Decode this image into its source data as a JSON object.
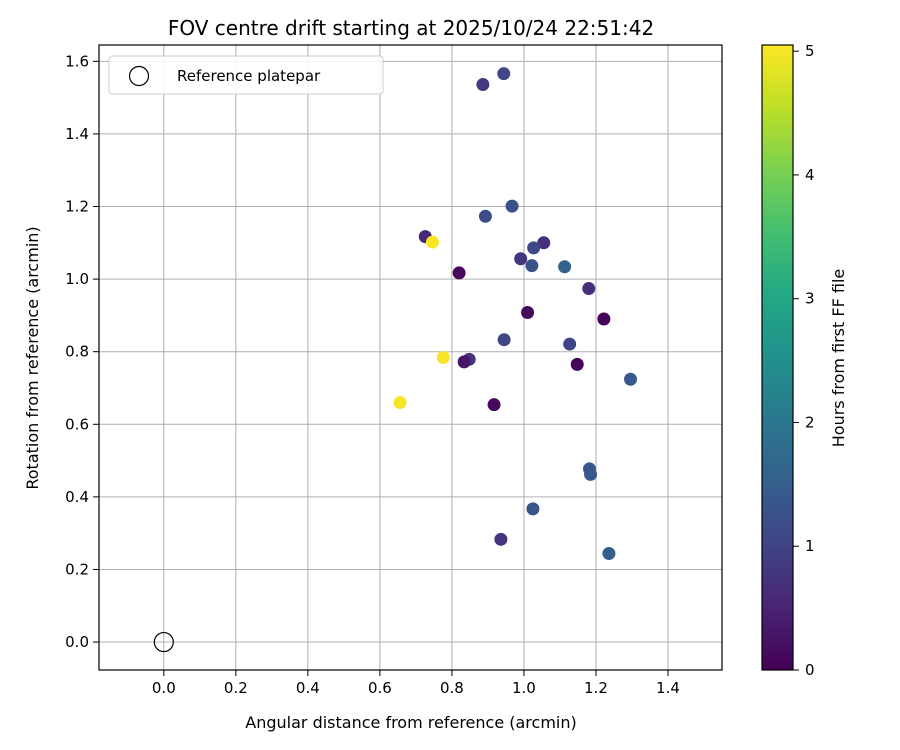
{
  "chart_data": {
    "type": "scatter",
    "title": "FOV centre drift starting at 2025/10/24 22:51:42",
    "xlabel": "Angular distance from reference (arcmin)",
    "ylabel": "Rotation from reference (arcmin)",
    "xlim": [
      -0.18,
      1.55
    ],
    "ylim": [
      -0.077,
      1.645
    ],
    "xticks": [
      0.0,
      0.2,
      0.4,
      0.6,
      0.8,
      1.0,
      1.2,
      1.4
    ],
    "xtick_labels": [
      "0.0",
      "0.2",
      "0.4",
      "0.6",
      "0.8",
      "1.0",
      "1.2",
      "1.4"
    ],
    "yticks": [
      0.0,
      0.2,
      0.4,
      0.6,
      0.8,
      1.0,
      1.2,
      1.4,
      1.6
    ],
    "ytick_labels": [
      "0.0",
      "0.2",
      "0.4",
      "0.6",
      "0.8",
      "1.0",
      "1.2",
      "1.4",
      "1.6"
    ],
    "grid": true,
    "legend": {
      "location": "upper-left",
      "entries": [
        "Reference platepar"
      ]
    },
    "reference_point": {
      "x": 0.0,
      "y": 0.0,
      "label": "Reference platepar"
    },
    "colorbar": {
      "label": "Hours from first FF file",
      "colormap": "viridis",
      "range": [
        0,
        5.05
      ],
      "ticks": [
        0,
        1,
        2,
        3,
        4,
        5
      ],
      "tick_labels": [
        "0",
        "1",
        "2",
        "3",
        "4",
        "5"
      ]
    },
    "points": [
      {
        "x": 0.944,
        "y": 1.566,
        "hours": 1.05
      },
      {
        "x": 0.886,
        "y": 1.536,
        "hours": 0.85
      },
      {
        "x": 0.967,
        "y": 1.201,
        "hours": 1.25
      },
      {
        "x": 0.893,
        "y": 1.173,
        "hours": 1.15
      },
      {
        "x": 0.726,
        "y": 1.117,
        "hours": 0.55
      },
      {
        "x": 0.746,
        "y": 1.102,
        "hours": 5.0
      },
      {
        "x": 1.055,
        "y": 1.1,
        "hours": 0.7
      },
      {
        "x": 1.027,
        "y": 1.086,
        "hours": 1.1
      },
      {
        "x": 0.991,
        "y": 1.056,
        "hours": 0.75
      },
      {
        "x": 1.022,
        "y": 1.037,
        "hours": 1.25
      },
      {
        "x": 1.113,
        "y": 1.034,
        "hours": 1.55
      },
      {
        "x": 0.82,
        "y": 1.017,
        "hours": 0.1
      },
      {
        "x": 1.18,
        "y": 0.974,
        "hours": 0.7
      },
      {
        "x": 1.01,
        "y": 0.908,
        "hours": 0.1
      },
      {
        "x": 1.222,
        "y": 0.89,
        "hours": 0.05
      },
      {
        "x": 0.945,
        "y": 0.833,
        "hours": 1.05
      },
      {
        "x": 1.127,
        "y": 0.821,
        "hours": 1.0
      },
      {
        "x": 0.776,
        "y": 0.784,
        "hours": 5.0
      },
      {
        "x": 0.848,
        "y": 0.779,
        "hours": 0.75
      },
      {
        "x": 0.834,
        "y": 0.772,
        "hours": 0.3
      },
      {
        "x": 1.148,
        "y": 0.765,
        "hours": 0.05
      },
      {
        "x": 1.296,
        "y": 0.724,
        "hours": 1.4
      },
      {
        "x": 0.656,
        "y": 0.66,
        "hours": 5.0
      },
      {
        "x": 0.917,
        "y": 0.654,
        "hours": 0.1
      },
      {
        "x": 1.182,
        "y": 0.477,
        "hours": 1.35
      },
      {
        "x": 1.185,
        "y": 0.462,
        "hours": 1.4
      },
      {
        "x": 1.025,
        "y": 0.367,
        "hours": 1.35
      },
      {
        "x": 0.936,
        "y": 0.283,
        "hours": 0.75
      },
      {
        "x": 1.236,
        "y": 0.244,
        "hours": 1.5
      }
    ]
  }
}
